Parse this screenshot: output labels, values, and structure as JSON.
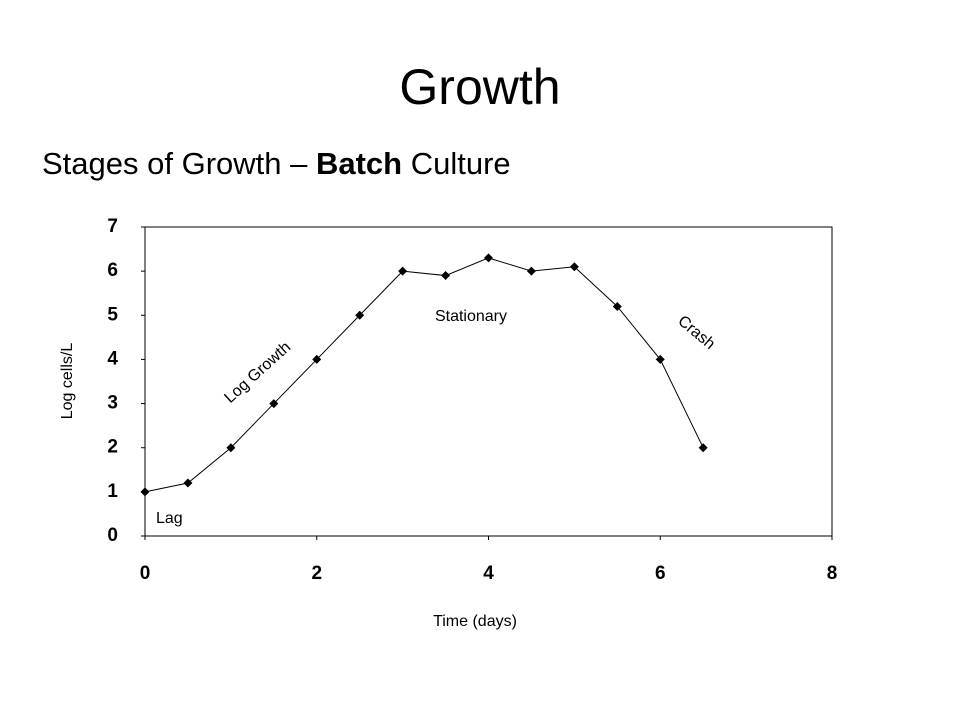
{
  "title": "Growth",
  "subtitle": [
    "Stages of Growth – ",
    "Batch",
    " Culture"
  ],
  "chart_data": {
    "type": "line",
    "x": [
      0,
      0.5,
      1,
      1.5,
      2,
      2.5,
      3,
      3.5,
      4,
      4.5,
      5,
      5.5,
      6,
      6.5
    ],
    "values": [
      1,
      1.2,
      2,
      3,
      4,
      5,
      6,
      5.9,
      6.3,
      6,
      6.1,
      5.2,
      4,
      2
    ],
    "color": "#000000",
    "xlim": [
      0,
      8
    ],
    "xticks": [
      0,
      2,
      4,
      6,
      8
    ],
    "ylim": [
      0,
      7
    ],
    "yticks": [
      0,
      1,
      2,
      3,
      4,
      5,
      6,
      7
    ],
    "x_label": "Time (days)",
    "y_label": "Log cells/L",
    "annotations": [
      "Lag",
      "Log Growth",
      "Stationary",
      "Crash"
    ]
  }
}
